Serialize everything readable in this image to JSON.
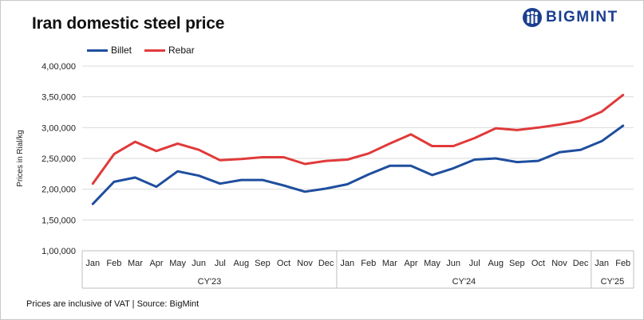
{
  "title": "Iran domestic steel price",
  "brand": "BIGMINT",
  "footer": "Prices are inclusive of VAT | Source: BigMint",
  "colors": {
    "billet": "#1f4e9e",
    "rebar": "#e03a3a",
    "grid": "#d9d9d9",
    "brand": "#1b3f8f"
  },
  "chart_data": {
    "type": "line",
    "title": "Iran domestic steel price",
    "ylabel": "Prices in Rial/kg",
    "xlabel": "",
    "ylim": [
      100000,
      400000
    ],
    "yticks": [
      100000,
      150000,
      200000,
      250000,
      300000,
      350000,
      400000
    ],
    "ytick_labels": [
      "1,00,000",
      "1,50,000",
      "2,00,000",
      "2,50,000",
      "3,00,000",
      "3,50,000",
      "4,00,000"
    ],
    "grid": true,
    "legend_position": "top-left",
    "categories": [
      "Jan",
      "Feb",
      "Mar",
      "Apr",
      "May",
      "Jun",
      "Jul",
      "Aug",
      "Sep",
      "Oct",
      "Nov",
      "Dec",
      "Jan",
      "Feb",
      "Mar",
      "Apr",
      "May",
      "Jun",
      "Jul",
      "Aug",
      "Sep",
      "Oct",
      "Nov",
      "Dec",
      "Jan",
      "Feb"
    ],
    "groups": [
      {
        "label": "CY'23",
        "count": 12
      },
      {
        "label": "CY'24",
        "count": 12
      },
      {
        "label": "CY'25",
        "count": 2
      }
    ],
    "series": [
      {
        "name": "Billet",
        "color": "#1f4e9e",
        "values": [
          176000,
          212000,
          219000,
          204000,
          229000,
          222000,
          209000,
          215000,
          215000,
          206000,
          196000,
          201000,
          208000,
          224000,
          238000,
          238000,
          223000,
          234000,
          248000,
          250000,
          244000,
          246000,
          260000,
          264000,
          278000,
          303000
        ]
      },
      {
        "name": "Rebar",
        "color": "#e03a3a",
        "values": [
          209000,
          257000,
          277000,
          262000,
          274000,
          264000,
          247000,
          249000,
          252000,
          252000,
          241000,
          246000,
          248000,
          258000,
          274000,
          289000,
          270000,
          270000,
          283000,
          299000,
          296000,
          300000,
          305000,
          311000,
          326000,
          353000
        ]
      }
    ]
  }
}
